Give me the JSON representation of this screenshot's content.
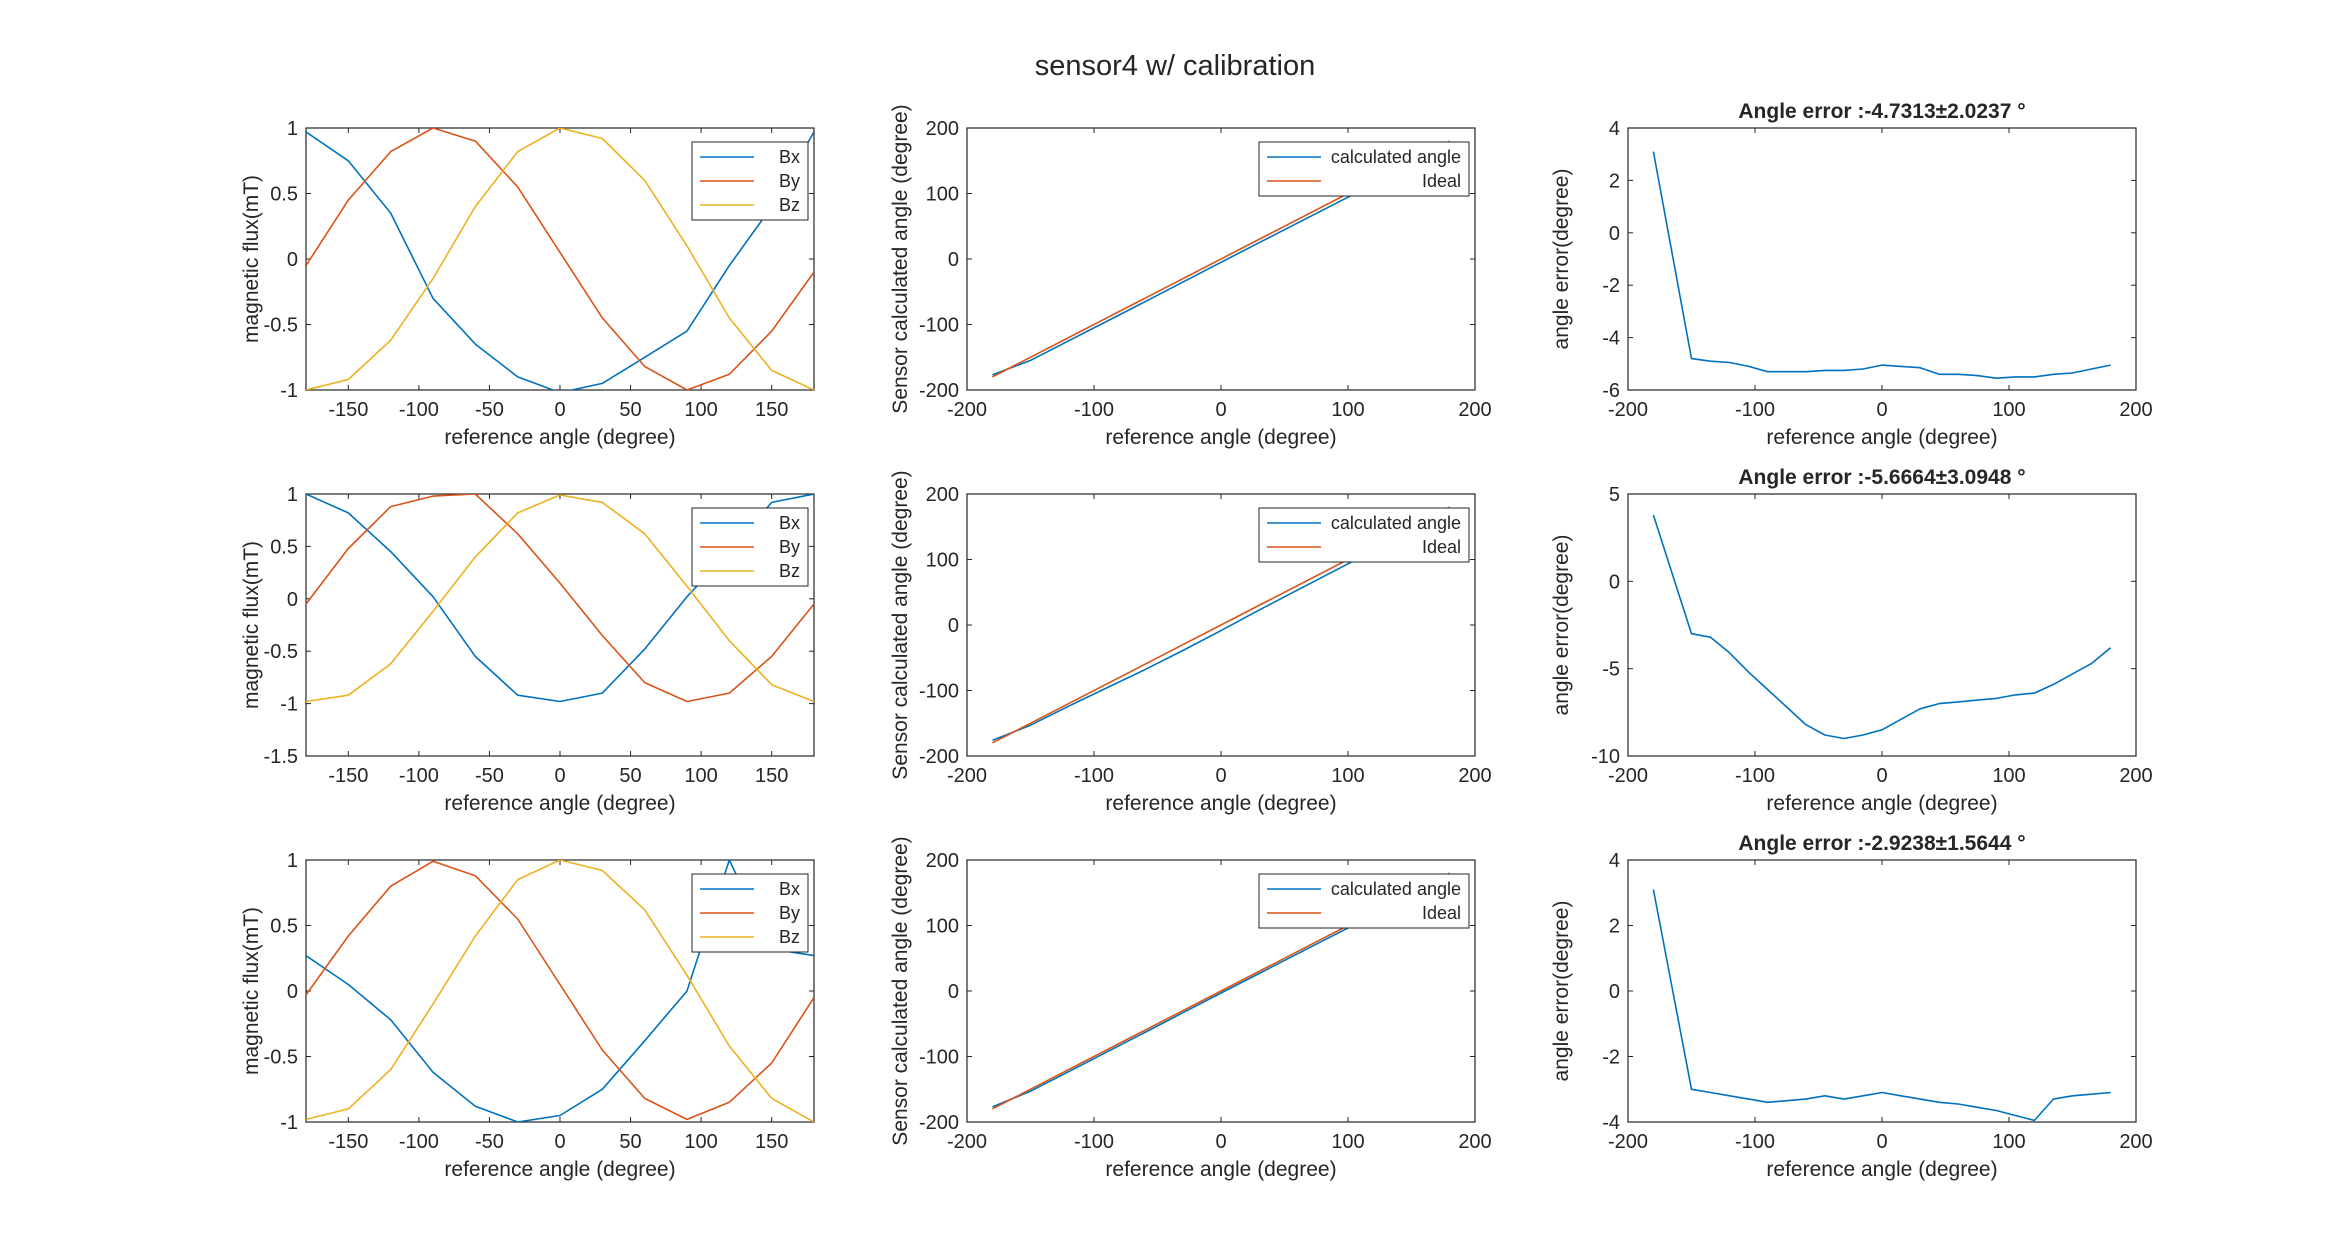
{
  "figure_title": "sensor4 w/ calibration",
  "colors": {
    "Bx": "#0072BD",
    "By": "#D95319",
    "Bz": "#EDB120",
    "calc": "#0072BD",
    "ideal": "#D95319",
    "err": "#0072BD",
    "axis": "#262626"
  },
  "chart_data": [
    {
      "id": "r1c1",
      "type": "line",
      "xlabel": "reference angle (degree)",
      "ylabel": "magnetic flux(mT)",
      "xlim": [
        -180,
        180
      ],
      "ylim": [
        -1,
        1
      ],
      "xticks": [
        -150,
        -100,
        -50,
        0,
        50,
        100,
        150
      ],
      "yticks": [
        -1,
        -0.5,
        0,
        0.5,
        1
      ],
      "legend": "top-right",
      "series": [
        {
          "name": "Bx",
          "color": "Bx",
          "x": [
            -180,
            -150,
            -120,
            -90,
            -60,
            -30,
            0,
            30,
            60,
            90,
            120,
            150,
            180
          ],
          "y": [
            0.97,
            0.75,
            0.35,
            -0.3,
            -0.65,
            -0.9,
            -1.02,
            -0.95,
            -0.75,
            -0.55,
            -0.05,
            0.4,
            0.97
          ]
        },
        {
          "name": "By",
          "color": "By",
          "x": [
            -180,
            -150,
            -120,
            -90,
            -60,
            -30,
            0,
            30,
            60,
            90,
            120,
            150,
            180
          ],
          "y": [
            -0.05,
            0.45,
            0.82,
            1.0,
            0.9,
            0.55,
            0.05,
            -0.45,
            -0.82,
            -1.0,
            -0.88,
            -0.55,
            -0.1
          ]
        },
        {
          "name": "Bz",
          "color": "Bz",
          "x": [
            -180,
            -150,
            -120,
            -90,
            -60,
            -30,
            0,
            30,
            60,
            90,
            120,
            150,
            180
          ],
          "y": [
            -1.0,
            -0.92,
            -0.62,
            -0.15,
            0.4,
            0.82,
            1.0,
            0.92,
            0.6,
            0.1,
            -0.45,
            -0.85,
            -1.0
          ]
        }
      ]
    },
    {
      "id": "r1c2",
      "type": "line",
      "xlabel": "reference angle (degree)",
      "ylabel": "Sensor calculated angle (degree)",
      "xlim": [
        -200,
        200
      ],
      "ylim": [
        -200,
        200
      ],
      "xticks": [
        -200,
        -100,
        0,
        100,
        200
      ],
      "yticks": [
        -200,
        -100,
        0,
        100,
        200
      ],
      "legend": "top-right",
      "series": [
        {
          "name": "calculated angle",
          "color": "calc",
          "x": [
            -180,
            -150,
            -120,
            -90,
            -60,
            -30,
            0,
            30,
            60,
            90,
            120,
            150,
            180
          ],
          "y": [
            -176.9,
            -154.8,
            -124.9,
            -95.3,
            -65.3,
            -35.2,
            -5.1,
            24.9,
            54.6,
            84.5,
            114.5,
            144.6,
            175.0
          ]
        },
        {
          "name": "Ideal",
          "color": "ideal",
          "x": [
            -180,
            180
          ],
          "y": [
            -180,
            180
          ]
        }
      ]
    },
    {
      "id": "r1c3",
      "type": "line",
      "title": "Angle error :-4.7313±2.0237 °",
      "xlabel": "reference angle (degree)",
      "ylabel": "angle error(degree)",
      "xlim": [
        -200,
        200
      ],
      "ylim": [
        -6,
        4
      ],
      "xticks": [
        -200,
        -100,
        0,
        100,
        200
      ],
      "yticks": [
        -6,
        -4,
        -2,
        0,
        2,
        4
      ],
      "series": [
        {
          "name": "angle error",
          "color": "err",
          "x": [
            -180,
            -150,
            -135,
            -120,
            -105,
            -90,
            -75,
            -60,
            -45,
            -30,
            -15,
            0,
            15,
            30,
            45,
            60,
            75,
            90,
            105,
            120,
            135,
            150,
            165,
            180
          ],
          "y": [
            3.1,
            -4.8,
            -4.9,
            -4.95,
            -5.1,
            -5.3,
            -5.3,
            -5.3,
            -5.25,
            -5.25,
            -5.2,
            -5.05,
            -5.1,
            -5.15,
            -5.4,
            -5.4,
            -5.45,
            -5.55,
            -5.5,
            -5.5,
            -5.4,
            -5.35,
            -5.2,
            -5.05
          ]
        }
      ]
    },
    {
      "id": "r2c1",
      "type": "line",
      "xlabel": "reference angle (degree)",
      "ylabel": "magnetic flux(mT)",
      "xlim": [
        -180,
        180
      ],
      "ylim": [
        -1.5,
        1
      ],
      "xticks": [
        -150,
        -100,
        -50,
        0,
        50,
        100,
        150
      ],
      "yticks": [
        -1.5,
        -1,
        -0.5,
        0,
        0.5,
        1
      ],
      "legend": "top-right",
      "series": [
        {
          "name": "Bx",
          "color": "Bx",
          "x": [
            -180,
            -150,
            -120,
            -90,
            -60,
            -30,
            0,
            30,
            60,
            90,
            120,
            150,
            180
          ],
          "y": [
            1.0,
            0.82,
            0.45,
            0.02,
            -0.55,
            -0.92,
            -0.98,
            -0.9,
            -0.48,
            0.02,
            0.45,
            0.92,
            1.0
          ]
        },
        {
          "name": "By",
          "color": "By",
          "x": [
            -180,
            -150,
            -120,
            -90,
            -60,
            -30,
            0,
            30,
            60,
            90,
            120,
            150,
            180
          ],
          "y": [
            -0.05,
            0.48,
            0.88,
            0.98,
            1.0,
            0.62,
            0.15,
            -0.35,
            -0.8,
            -0.98,
            -0.9,
            -0.55,
            -0.05
          ]
        },
        {
          "name": "Bz",
          "color": "Bz",
          "x": [
            -180,
            -150,
            -120,
            -90,
            -60,
            -30,
            0,
            30,
            60,
            90,
            120,
            150,
            180
          ],
          "y": [
            -0.98,
            -0.92,
            -0.62,
            -0.12,
            0.4,
            0.82,
            0.99,
            0.92,
            0.62,
            0.12,
            -0.4,
            -0.82,
            -0.98
          ]
        }
      ]
    },
    {
      "id": "r2c2",
      "type": "line",
      "xlabel": "reference angle (degree)",
      "ylabel": "Sensor calculated angle (degree)",
      "xlim": [
        -200,
        200
      ],
      "ylim": [
        -200,
        200
      ],
      "xticks": [
        -200,
        -100,
        0,
        100,
        200
      ],
      "yticks": [
        -200,
        -100,
        0,
        100,
        200
      ],
      "legend": "top-right",
      "series": [
        {
          "name": "calculated angle",
          "color": "calc",
          "x": [
            -180,
            -150,
            -120,
            -90,
            -60,
            -30,
            0,
            30,
            60,
            90,
            120,
            150,
            180
          ],
          "y": [
            -176.2,
            -153.0,
            -124.0,
            -96.0,
            -68.3,
            -38.9,
            -8.5,
            22.7,
            53.1,
            83.3,
            113.6,
            144.7,
            176.2
          ]
        },
        {
          "name": "Ideal",
          "color": "ideal",
          "x": [
            -180,
            180
          ],
          "y": [
            -180,
            180
          ]
        }
      ]
    },
    {
      "id": "r2c3",
      "type": "line",
      "title": "Angle error :-5.6664±3.0948 °",
      "xlabel": "reference angle (degree)",
      "ylabel": "angle error(degree)",
      "xlim": [
        -200,
        200
      ],
      "ylim": [
        -10,
        5
      ],
      "xticks": [
        -200,
        -100,
        0,
        100,
        200
      ],
      "yticks": [
        -10,
        -5,
        0,
        5
      ],
      "series": [
        {
          "name": "angle error",
          "color": "err",
          "x": [
            -180,
            -150,
            -135,
            -120,
            -105,
            -90,
            -75,
            -60,
            -45,
            -30,
            -15,
            0,
            15,
            30,
            45,
            60,
            75,
            90,
            105,
            120,
            135,
            150,
            165,
            180
          ],
          "y": [
            3.8,
            -3.0,
            -3.2,
            -4.1,
            -5.2,
            -6.2,
            -7.2,
            -8.2,
            -8.8,
            -9.0,
            -8.8,
            -8.5,
            -7.9,
            -7.3,
            -7.0,
            -6.9,
            -6.8,
            -6.7,
            -6.5,
            -6.4,
            -5.9,
            -5.3,
            -4.7,
            -3.8
          ]
        }
      ]
    },
    {
      "id": "r3c1",
      "type": "line",
      "xlabel": "reference angle (degree)",
      "ylabel": "magnetic flux(mT)",
      "xlim": [
        -180,
        180
      ],
      "ylim": [
        -1,
        1
      ],
      "xticks": [
        -150,
        -100,
        -50,
        0,
        50,
        100,
        150
      ],
      "yticks": [
        -1,
        -0.5,
        0,
        0.5,
        1
      ],
      "legend": "top-right",
      "series": [
        {
          "name": "Bx",
          "color": "Bx",
          "x": [
            -180,
            -150,
            -120,
            -90,
            -60,
            -30,
            0,
            30,
            60,
            90,
            120,
            150,
            180
          ],
          "y": [
            0.27,
            0.05,
            -0.22,
            -0.62,
            -0.88,
            -1.0,
            -0.95,
            -0.75,
            -0.38,
            0.0,
            1.0,
            0.32,
            0.27
          ]
        },
        {
          "name": "By",
          "color": "By",
          "x": [
            -180,
            -150,
            -120,
            -90,
            -60,
            -30,
            0,
            30,
            60,
            90,
            120,
            150,
            180
          ],
          "y": [
            -0.03,
            0.42,
            0.8,
            0.99,
            0.88,
            0.55,
            0.05,
            -0.45,
            -0.82,
            -0.98,
            -0.85,
            -0.55,
            -0.05
          ]
        },
        {
          "name": "Bz",
          "color": "Bz",
          "x": [
            -180,
            -150,
            -120,
            -90,
            -60,
            -30,
            0,
            30,
            60,
            90,
            120,
            150,
            180
          ],
          "y": [
            -0.98,
            -0.9,
            -0.6,
            -0.1,
            0.42,
            0.85,
            1.0,
            0.92,
            0.62,
            0.12,
            -0.42,
            -0.82,
            -1.0
          ]
        }
      ]
    },
    {
      "id": "r3c2",
      "type": "line",
      "xlabel": "reference angle (degree)",
      "ylabel": "Sensor calculated angle (degree)",
      "xlim": [
        -200,
        200
      ],
      "ylim": [
        -200,
        200
      ],
      "xticks": [
        -200,
        -100,
        0,
        100,
        200
      ],
      "yticks": [
        -200,
        -100,
        0,
        100,
        200
      ],
      "legend": "top-right",
      "series": [
        {
          "name": "calculated angle",
          "color": "calc",
          "x": [
            -180,
            -150,
            -120,
            -90,
            -60,
            -30,
            0,
            30,
            60,
            90,
            120,
            150,
            180
          ],
          "y": [
            -176.9,
            -153.0,
            -123.2,
            -93.3,
            -63.3,
            -33.2,
            -3.1,
            26.7,
            56.6,
            86.4,
            116.1,
            146.8,
            176.9
          ]
        },
        {
          "name": "Ideal",
          "color": "ideal",
          "x": [
            -180,
            180
          ],
          "y": [
            -180,
            180
          ]
        }
      ]
    },
    {
      "id": "r3c3",
      "type": "line",
      "title": "Angle error :-2.9238±1.5644 °",
      "xlabel": "reference angle (degree)",
      "ylabel": "angle error(degree)",
      "xlim": [
        -200,
        200
      ],
      "ylim": [
        -4,
        4
      ],
      "xticks": [
        -200,
        -100,
        0,
        100,
        200
      ],
      "yticks": [
        -4,
        -2,
        0,
        2,
        4
      ],
      "series": [
        {
          "name": "angle error",
          "color": "err",
          "x": [
            -180,
            -150,
            -135,
            -120,
            -105,
            -90,
            -75,
            -60,
            -45,
            -30,
            -15,
            0,
            15,
            30,
            45,
            60,
            75,
            90,
            105,
            120,
            135,
            150,
            165,
            180
          ],
          "y": [
            3.1,
            -3.0,
            -3.1,
            -3.2,
            -3.3,
            -3.4,
            -3.35,
            -3.3,
            -3.2,
            -3.3,
            -3.2,
            -3.1,
            -3.2,
            -3.3,
            -3.4,
            -3.45,
            -3.55,
            -3.65,
            -3.8,
            -3.95,
            -3.3,
            -3.2,
            -3.15,
            -3.1
          ]
        }
      ]
    }
  ]
}
